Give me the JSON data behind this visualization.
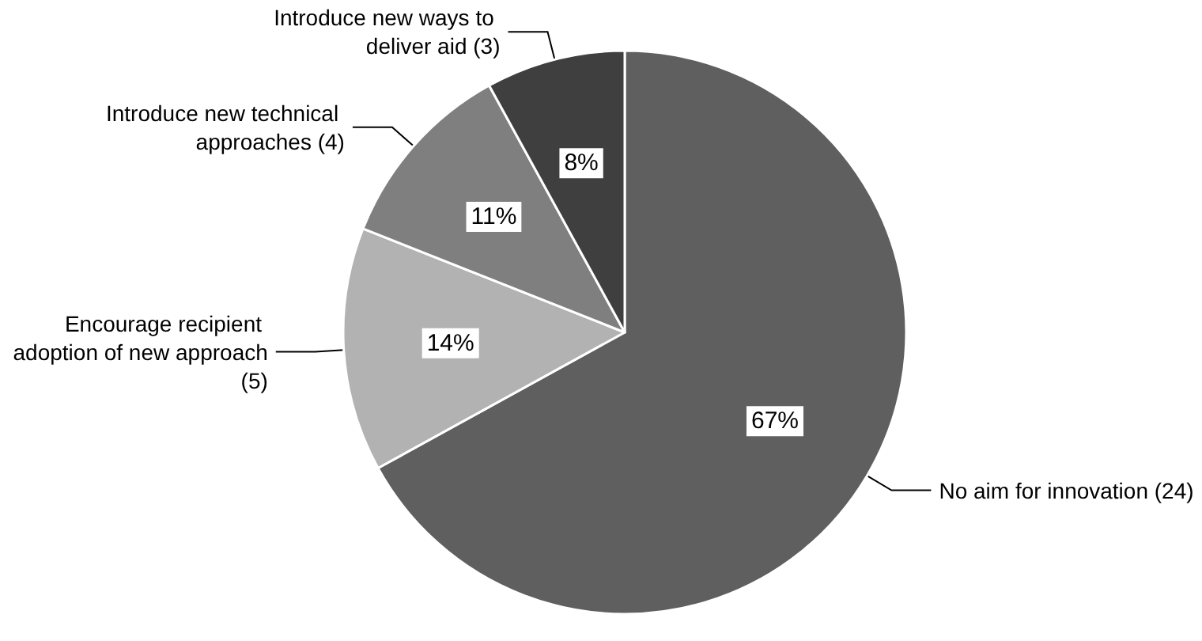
{
  "chart_data": {
    "type": "pie",
    "categories": [
      "No aim for innovation (24)",
      "Encourage recipient adoption of new approach (5)",
      "Introduce new technical approaches (4)",
      "Introduce new ways to deliver aid (3)"
    ],
    "values": [
      67,
      14,
      11,
      8
    ],
    "value_labels": [
      "67%",
      "14%",
      "11%",
      "8%"
    ],
    "colors": [
      "#5f5f5f",
      "#b2b2b2",
      "#7f7f7f",
      "#3f3f3f"
    ]
  }
}
